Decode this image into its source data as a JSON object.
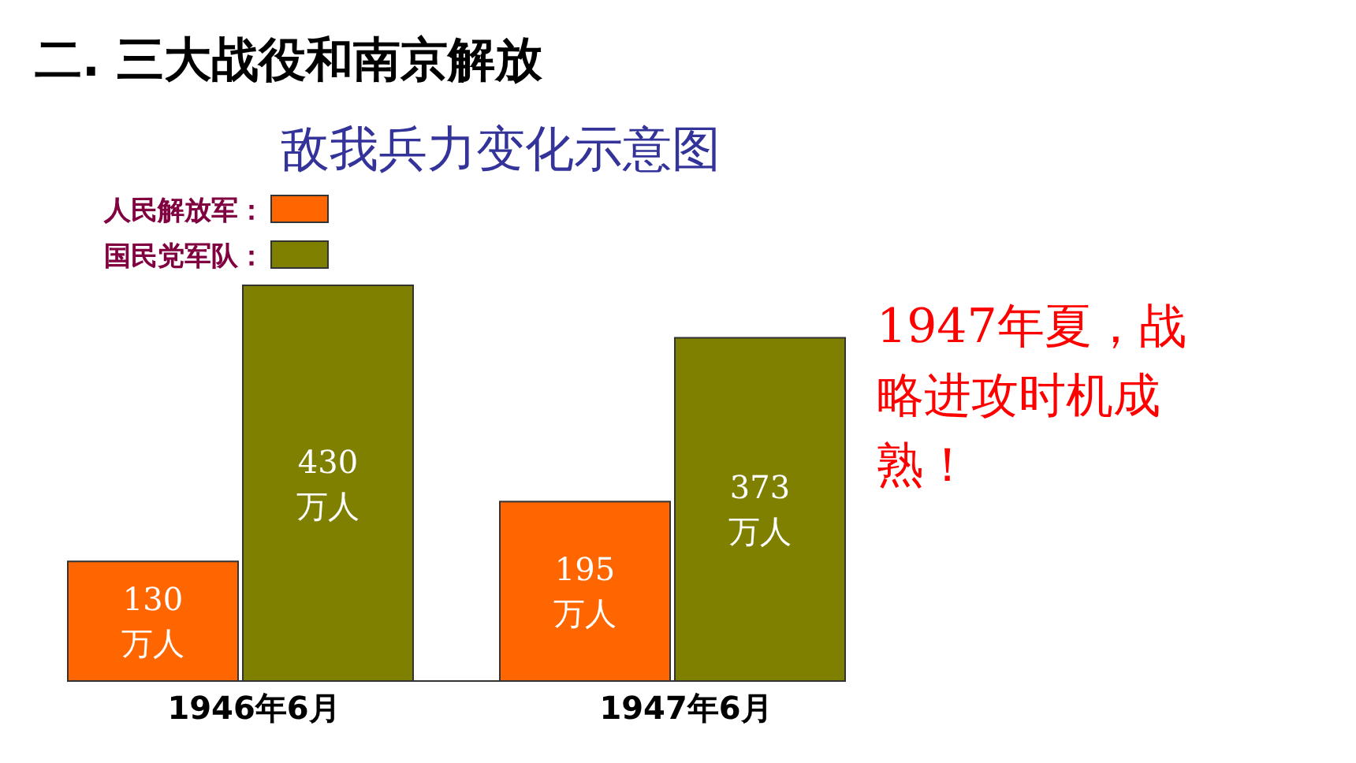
{
  "chart_data": {
    "type": "bar",
    "title": "二. 三大战役和南京解放",
    "subtitle": "敌我兵力变化示意图",
    "categories": [
      "1946年6月",
      "1947年6月"
    ],
    "series": [
      {
        "name": "人民解放军：",
        "color": "#ff6600",
        "values": [
          130,
          195
        ],
        "value_labels": [
          "130万人",
          "195万人"
        ]
      },
      {
        "name": "国民党军队：",
        "color": "#808000",
        "values": [
          430,
          373
        ],
        "value_labels": [
          "430万人",
          "373万人"
        ]
      }
    ],
    "legend": "top left",
    "annotations": [
      "1947年夏，战略进攻时机成熟！"
    ]
  }
}
